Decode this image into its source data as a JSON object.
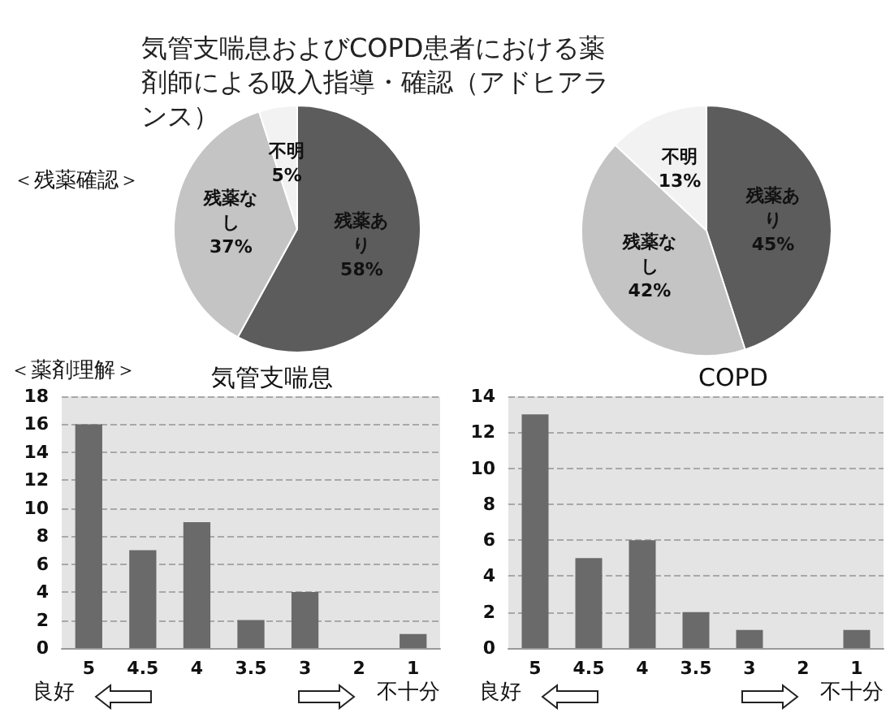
{
  "chart_data": [
    {
      "type": "pie",
      "title": "気管支喘息およびCOPD患者における薬剤師による吸入指導・確認（アドヒアランス）",
      "categories": [
        "残薬あり",
        "残薬なし",
        "不明"
      ],
      "values": [
        58,
        37,
        5
      ],
      "value_labels": [
        "58%",
        "37%",
        "5%"
      ],
      "colors": [
        "#5c5c5c",
        "#c4c4c4",
        "#f2f2f2"
      ],
      "annotations": [
        "＜残薬確認＞"
      ],
      "legend": false
    },
    {
      "type": "pie",
      "categories": [
        "残薬あり",
        "残薬なし",
        "不明"
      ],
      "values": [
        45,
        42,
        13
      ],
      "value_labels": [
        "45%",
        "42%",
        "13%"
      ],
      "colors": [
        "#5c5c5c",
        "#c4c4c4",
        "#f2f2f2"
      ],
      "legend": false
    },
    {
      "type": "bar",
      "title": "気管支喘息",
      "categories": [
        "5",
        "4.5",
        "4",
        "3.5",
        "3",
        "2",
        "1"
      ],
      "values": [
        16,
        7,
        9,
        2,
        4,
        0,
        1
      ],
      "color": "#6a6a6a",
      "ylim": [
        0,
        18
      ],
      "yticks": [
        0,
        2,
        4,
        6,
        8,
        10,
        12,
        14,
        16,
        18
      ],
      "grid": "y",
      "legend": false,
      "annotations": [
        "＜薬剤理解＞",
        "良好",
        "不十分"
      ]
    },
    {
      "type": "bar",
      "title": "COPD",
      "categories": [
        "5",
        "4.5",
        "4",
        "3.5",
        "3",
        "2",
        "1"
      ],
      "values": [
        13,
        5,
        6,
        2,
        1,
        0,
        1
      ],
      "color": "#6a6a6a",
      "ylim": [
        0,
        14
      ],
      "yticks": [
        0,
        2,
        4,
        6,
        8,
        10,
        12,
        14
      ],
      "grid": "y",
      "legend": false,
      "annotations": [
        "良好",
        "不十分"
      ]
    }
  ]
}
